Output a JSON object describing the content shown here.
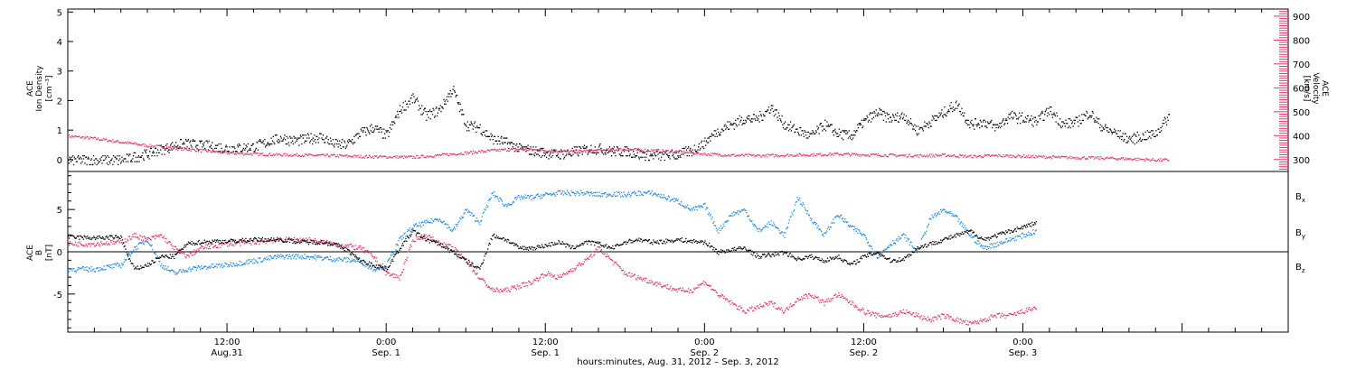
{
  "chart_data": [
    {
      "type": "scatter",
      "panel": "top",
      "ylabel_left": [
        "ACE",
        "Ion Density",
        "[cm⁻³]"
      ],
      "ylabel_right": [
        "ACE",
        "Velocity",
        "[km/s]"
      ],
      "ylim_left": [
        -0.4,
        5.1
      ],
      "ylim_right": [
        250,
        930
      ],
      "yticks_left": [
        "0",
        "1",
        "2",
        "3",
        "4",
        "5"
      ],
      "yticks_right": [
        "300",
        "400",
        "500",
        "600",
        "700",
        "800",
        "900"
      ],
      "xlim_hours": [
        0,
        92
      ],
      "series": [
        {
          "axis": "left",
          "color": "#000000",
          "x": [
            0,
            4,
            4.5,
            6,
            7,
            8,
            9,
            10,
            11,
            12,
            14,
            16,
            17,
            18,
            19,
            20,
            21,
            22,
            23,
            24,
            25,
            26,
            27,
            28,
            29,
            30,
            31,
            32,
            33,
            34,
            35,
            36,
            37,
            38,
            39,
            40,
            41,
            42,
            43,
            44,
            45,
            46,
            47,
            48,
            49,
            50,
            51,
            52,
            53,
            54,
            55,
            56,
            57,
            58,
            59,
            60,
            61,
            62,
            63,
            64,
            65,
            66,
            67,
            68,
            69,
            70,
            71,
            72,
            73,
            74,
            75,
            76,
            77,
            78,
            79,
            80,
            81,
            82,
            83
          ],
          "values": [
            0,
            0,
            0.05,
            0.2,
            0.35,
            0.5,
            0.55,
            0.5,
            0.45,
            0.4,
            0.45,
            0.75,
            0.65,
            0.7,
            0.8,
            0.55,
            0.5,
            0.9,
            1.1,
            0.8,
            1.7,
            2.1,
            1.5,
            1.7,
            2.4,
            1.2,
            1.1,
            0.7,
            0.6,
            0.4,
            0.3,
            0.25,
            0.2,
            0.25,
            0.35,
            0.4,
            0.3,
            0.3,
            0.2,
            0.15,
            0.15,
            0.2,
            0.3,
            0.6,
            1.0,
            1.2,
            1.4,
            1.4,
            1.8,
            1.2,
            1.0,
            0.8,
            1.2,
            0.9,
            0.8,
            1.3,
            1.6,
            1.4,
            1.5,
            1.0,
            1.3,
            1.6,
            1.9,
            1.2,
            1.3,
            1.1,
            1.5,
            1.4,
            1.3,
            1.7,
            1.2,
            1.3,
            1.6,
            1.1,
            0.9,
            0.7,
            0.8,
            0.9,
            1.5
          ]
        },
        {
          "axis": "right",
          "color": "#e8336b",
          "x": [
            0,
            2,
            4,
            6,
            8,
            10,
            12,
            14,
            16,
            18,
            20,
            22,
            24,
            26,
            28,
            30,
            32,
            34,
            36,
            38,
            40,
            42,
            44,
            46,
            48,
            50,
            52,
            54,
            56,
            58,
            60,
            62,
            64,
            66,
            68,
            70,
            72,
            74,
            76,
            78,
            80,
            82,
            83
          ],
          "values": [
            400,
            390,
            375,
            360,
            350,
            340,
            330,
            325,
            322,
            320,
            318,
            315,
            313,
            312,
            320,
            330,
            340,
            345,
            340,
            335,
            340,
            345,
            340,
            335,
            325,
            320,
            318,
            320,
            322,
            325,
            322,
            320,
            318,
            320,
            315,
            318,
            316,
            312,
            310,
            308,
            305,
            300,
            300
          ]
        }
      ]
    },
    {
      "type": "scatter",
      "panel": "bottom",
      "ylabel_left": [
        "ACE",
        "B",
        "[nT]"
      ],
      "ylim": [
        -9.5,
        9.5
      ],
      "yticks": [
        "-5",
        "0",
        "5"
      ],
      "xlim_hours": [
        0,
        92
      ],
      "xticks": [
        {
          "hour": 12,
          "time": "12:00",
          "date": "Aug.31"
        },
        {
          "hour": 24,
          "time": "0:00",
          "date": "Sep. 1"
        },
        {
          "hour": 36,
          "time": "12:00",
          "date": "Sep. 1"
        },
        {
          "hour": 48,
          "time": "0:00",
          "date": "Sep. 2"
        },
        {
          "hour": 60,
          "time": "12:00",
          "date": "Sep. 2"
        },
        {
          "hour": 72,
          "time": "0:00",
          "date": "Sep. 3"
        }
      ],
      "xlabel": "hours:minutes, Aug. 31, 2012 – Sep.  3, 2012",
      "legend": [
        {
          "name": "B",
          "sub": "x",
          "color": "#000000"
        },
        {
          "name": "B",
          "sub": "y",
          "color": "#1e88e5"
        },
        {
          "name": "B",
          "sub": "z",
          "color": "#e8336b"
        }
      ],
      "series": [
        {
          "name": "Bx",
          "color": "#000000",
          "x": [
            0,
            2,
            4,
            4.5,
            5,
            6,
            7,
            8,
            9,
            10,
            11,
            12,
            14,
            16,
            17,
            18,
            19,
            20,
            21,
            22,
            23,
            24,
            25,
            26,
            27,
            28,
            29,
            30,
            31,
            32,
            33,
            34,
            35,
            36,
            37,
            38,
            39,
            40,
            41,
            42,
            43,
            44,
            45,
            46,
            47,
            48,
            49,
            50,
            51,
            52,
            53,
            54,
            55,
            56,
            57,
            58,
            59,
            60,
            61,
            62,
            63,
            64,
            65,
            66,
            67,
            68,
            69,
            70,
            71,
            72,
            73
          ],
          "values": [
            1.8,
            1.7,
            1.8,
            -0.5,
            -2.0,
            -1.5,
            -0.5,
            -0.5,
            1.0,
            1.2,
            1.3,
            1.3,
            1.5,
            1.5,
            1.3,
            1.2,
            1.2,
            1.0,
            0.3,
            -1.0,
            -1.5,
            -2.0,
            0.5,
            2.5,
            1.5,
            1.0,
            0.0,
            -1.0,
            -2.0,
            2.0,
            1.5,
            0.5,
            0.5,
            0.8,
            1.2,
            0.5,
            1.2,
            1.0,
            0.5,
            1.2,
            1.5,
            1.2,
            1.3,
            1.5,
            1.3,
            1.2,
            0.0,
            0.3,
            0.5,
            -0.5,
            -0.3,
            0.0,
            -0.8,
            -0.5,
            -1.0,
            -0.5,
            -1.5,
            -0.5,
            0.0,
            -1.0,
            -0.8,
            0.5,
            1.0,
            1.5,
            2.0,
            2.5,
            1.5,
            2.0,
            2.5,
            3.0,
            3.5
          ]
        },
        {
          "name": "By",
          "color": "#1e88e5",
          "x": [
            0,
            2,
            4,
            5,
            6,
            7,
            8,
            9,
            10,
            12,
            14,
            16,
            18,
            20,
            22,
            23,
            24,
            25,
            26,
            27,
            28,
            29,
            30,
            31,
            32,
            33,
            34,
            35,
            36,
            37,
            38,
            39,
            40,
            41,
            42,
            43,
            44,
            45,
            46,
            47,
            48,
            49,
            50,
            51,
            52,
            53,
            54,
            55,
            56,
            57,
            58,
            59,
            60,
            61,
            62,
            63,
            64,
            65,
            66,
            67,
            68,
            69,
            70,
            71,
            72,
            73
          ],
          "values": [
            -2.0,
            -2.0,
            -1.5,
            0.5,
            1.5,
            -1.5,
            -2.5,
            -2.0,
            -1.8,
            -1.5,
            -1.0,
            -0.5,
            -0.5,
            -0.8,
            -1.0,
            -2.0,
            -1.5,
            1.5,
            3.0,
            3.5,
            4.0,
            2.5,
            5.0,
            3.5,
            7.0,
            5.5,
            6.5,
            6.5,
            6.8,
            7.0,
            7.0,
            7.0,
            6.8,
            6.9,
            6.8,
            7.0,
            7.0,
            6.5,
            6.0,
            5.0,
            5.5,
            2.5,
            4.5,
            5.0,
            2.5,
            3.5,
            2.0,
            6.5,
            4.0,
            2.0,
            4.5,
            3.0,
            2.0,
            -0.5,
            1.0,
            2.0,
            0.0,
            4.0,
            5.0,
            4.0,
            2.0,
            0.5,
            1.0,
            1.5,
            2.0,
            2.5
          ]
        },
        {
          "name": "Bz",
          "color": "#e8336b",
          "x": [
            0,
            2,
            4,
            5,
            6,
            7,
            8,
            9,
            10,
            12,
            14,
            16,
            18,
            20,
            22,
            23,
            24,
            25,
            26,
            27,
            28,
            29,
            30,
            31,
            32,
            33,
            34,
            35,
            36,
            37,
            38,
            39,
            40,
            41,
            42,
            43,
            44,
            45,
            46,
            47,
            48,
            49,
            50,
            51,
            52,
            53,
            54,
            55,
            56,
            57,
            58,
            59,
            60,
            61,
            62,
            63,
            64,
            65,
            66,
            67,
            68,
            69,
            70,
            71,
            72,
            73
          ],
          "values": [
            1.0,
            1.0,
            1.2,
            2.0,
            1.5,
            2.0,
            0.5,
            -0.5,
            0.5,
            1.0,
            1.2,
            1.5,
            1.5,
            1.0,
            0.5,
            -0.5,
            -2.5,
            -3.0,
            1.5,
            2.0,
            1.0,
            0.5,
            -1.0,
            -3.0,
            -4.5,
            -4.5,
            -4.0,
            -3.5,
            -2.5,
            -3.0,
            -2.0,
            -1.0,
            0.5,
            -1.0,
            -2.5,
            -3.0,
            -3.5,
            -4.0,
            -4.5,
            -4.5,
            -3.5,
            -5.0,
            -6.0,
            -7.0,
            -6.5,
            -6.0,
            -7.0,
            -5.5,
            -5.0,
            -6.0,
            -5.0,
            -6.0,
            -7.0,
            -7.5,
            -7.5,
            -7.0,
            -7.5,
            -8.0,
            -7.5,
            -8.0,
            -8.5,
            -8.0,
            -7.5,
            -7.5,
            -7.0,
            -6.5
          ]
        }
      ]
    }
  ]
}
